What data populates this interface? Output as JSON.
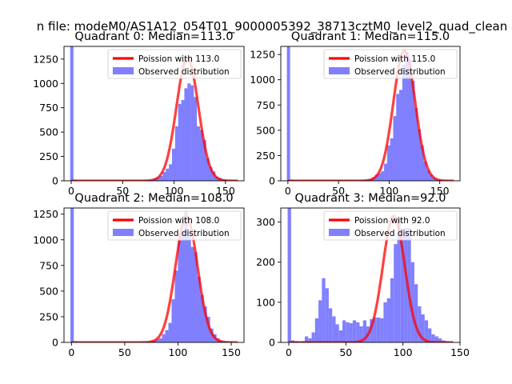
{
  "figure": {
    "suptitle": "n file: modeM0/AS1A12_054T01_9000005392_38713cztM0_level2_quad_clean"
  },
  "chart_data": [
    {
      "type": "bar",
      "title": "Quadrant 0: Median=113.0",
      "xlim": [
        -7,
        168
      ],
      "ylim": [
        0,
        1380
      ],
      "xticks": [
        0,
        50,
        100,
        150
      ],
      "yticks": [
        0,
        250,
        500,
        750,
        1000,
        1250
      ],
      "poisson_mean": 113.0,
      "legend": {
        "placement": "upper-right",
        "entries": [
          "Poission with 113.0",
          "Observed distribution"
        ]
      },
      "series": [
        {
          "name": "Poission with 113.0",
          "type": "line",
          "color": "#ff0000",
          "source": "poisson",
          "scale": 1260
        },
        {
          "name": "Observed distribution",
          "type": "hist",
          "color": "#8080ff",
          "bin_width": 3.2,
          "x": [
            -1,
            2,
            5,
            65,
            68,
            71,
            74,
            77,
            80,
            83,
            86,
            89,
            92,
            95,
            98,
            101,
            104,
            107,
            110,
            113,
            116,
            119,
            122,
            125,
            128,
            131,
            134,
            137,
            140,
            143,
            146,
            149,
            152,
            155,
            158
          ],
          "values": [
            1380,
            10,
            5,
            3,
            4,
            6,
            8,
            12,
            25,
            35,
            50,
            90,
            125,
            170,
            330,
            560,
            790,
            830,
            950,
            1000,
            980,
            860,
            560,
            520,
            420,
            230,
            140,
            95,
            40,
            30,
            15,
            10,
            5,
            3,
            2
          ]
        }
      ]
    },
    {
      "type": "bar",
      "title": "Quadrant 1: Median=115.0",
      "xlim": [
        -7,
        170
      ],
      "ylim": [
        0,
        1330
      ],
      "xticks": [
        0,
        50,
        100,
        150
      ],
      "yticks": [
        0,
        250,
        500,
        750,
        1000,
        1250
      ],
      "poisson_mean": 115.0,
      "legend": {
        "placement": "upper-right",
        "entries": [
          "Poission with 115.0",
          "Observed distribution"
        ]
      },
      "series": [
        {
          "name": "Poission with 115.0",
          "type": "line",
          "color": "#ff0000",
          "source": "poisson",
          "scale": 1290
        },
        {
          "name": "Observed distribution",
          "type": "hist",
          "color": "#8080ff",
          "bin_width": 3.2,
          "x": [
            -1,
            2,
            5,
            68,
            71,
            74,
            77,
            80,
            83,
            86,
            89,
            92,
            95,
            98,
            101,
            104,
            107,
            110,
            113,
            116,
            119,
            122,
            125,
            128,
            131,
            134,
            137,
            140,
            143,
            146,
            149,
            152,
            155,
            158
          ],
          "values": [
            1330,
            10,
            5,
            3,
            5,
            8,
            12,
            20,
            35,
            60,
            75,
            95,
            170,
            350,
            420,
            640,
            860,
            900,
            1150,
            1270,
            1200,
            990,
            720,
            510,
            350,
            190,
            105,
            60,
            30,
            15,
            10,
            5,
            3,
            2
          ]
        }
      ]
    },
    {
      "type": "bar",
      "title": "Quadrant 2: Median=108.0",
      "xlim": [
        -7,
        162
      ],
      "ylim": [
        0,
        1310
      ],
      "xticks": [
        0,
        50,
        100,
        150
      ],
      "yticks": [
        0,
        250,
        500,
        750,
        1000,
        1250
      ],
      "poisson_mean": 108.0,
      "legend": {
        "placement": "upper-right",
        "entries": [
          "Poission with 108.0",
          "Observed distribution"
        ]
      },
      "series": [
        {
          "name": "Poission with 108.0",
          "type": "line",
          "color": "#ff0000",
          "source": "poisson",
          "scale": 1220
        },
        {
          "name": "Observed distribution",
          "type": "hist",
          "color": "#8080ff",
          "bin_width": 3.2,
          "x": [
            -1,
            2,
            5,
            64,
            67,
            70,
            73,
            76,
            79,
            82,
            85,
            88,
            91,
            94,
            97,
            100,
            103,
            106,
            109,
            112,
            115,
            118,
            121,
            124,
            127,
            130,
            133,
            136,
            139,
            142,
            145
          ],
          "values": [
            1310,
            10,
            5,
            3,
            5,
            8,
            12,
            18,
            30,
            40,
            80,
            120,
            190,
            420,
            700,
            990,
            1080,
            1280,
            1100,
            930,
            880,
            640,
            460,
            350,
            250,
            135,
            80,
            40,
            20,
            10,
            5
          ]
        }
      ]
    },
    {
      "type": "bar",
      "title": "Quadrant 3: Median=92.0",
      "xlim": [
        -7,
        150
      ],
      "ylim": [
        0,
        335
      ],
      "xticks": [
        0,
        50,
        100,
        150
      ],
      "yticks": [
        0,
        100,
        200,
        300
      ],
      "poisson_mean": 92.0,
      "legend": {
        "placement": "upper-right",
        "entries": [
          "Poission with 92.0",
          "Observed distribution"
        ]
      },
      "series": [
        {
          "name": "Poission with 92.0",
          "type": "line",
          "color": "#ff0000",
          "source": "poisson",
          "scale": 315
        },
        {
          "name": "Observed distribution",
          "type": "hist",
          "color": "#8080ff",
          "bin_width": 3.0,
          "x": [
            -1,
            2,
            5,
            11,
            14,
            17,
            20,
            23,
            26,
            29,
            32,
            35,
            38,
            41,
            44,
            47,
            50,
            53,
            56,
            59,
            62,
            65,
            68,
            71,
            74,
            77,
            80,
            83,
            86,
            89,
            92,
            95,
            98,
            101,
            104,
            107,
            110,
            113,
            116,
            119,
            122,
            125,
            128,
            131,
            134,
            137
          ],
          "values": [
            335,
            5,
            3,
            3,
            15,
            10,
            25,
            60,
            105,
            160,
            135,
            85,
            65,
            45,
            30,
            55,
            50,
            48,
            55,
            50,
            40,
            55,
            40,
            58,
            62,
            62,
            60,
            100,
            110,
            160,
            245,
            310,
            265,
            285,
            285,
            200,
            145,
            90,
            70,
            55,
            35,
            20,
            15,
            10,
            5,
            3
          ]
        }
      ]
    }
  ]
}
